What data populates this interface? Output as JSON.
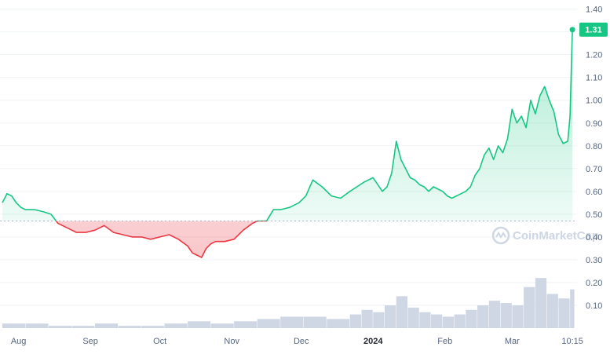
{
  "chart_data": {
    "type": "area",
    "baseline": 0.47,
    "y_ticks": [
      "1.40",
      "1.30",
      "1.20",
      "1.10",
      "1.00",
      "0.90",
      "0.80",
      "0.70",
      "0.60",
      "0.50",
      "0.40",
      "0.30",
      "0.20",
      "0.10"
    ],
    "ylim": [
      0.0,
      1.44
    ],
    "x_ticks": [
      {
        "label": "Aug",
        "day": 7
      },
      {
        "label": "Sep",
        "day": 38
      },
      {
        "label": "Oct",
        "day": 68
      },
      {
        "label": "Nov",
        "day": 99
      },
      {
        "label": "Dec",
        "day": 129
      },
      {
        "label": "2024",
        "day": 160,
        "bold": true
      },
      {
        "label": "Feb",
        "day": 191
      },
      {
        "label": "Mar",
        "day": 220
      },
      {
        "label": "10:15",
        "day": 246
      }
    ],
    "current_price": {
      "value": 1.31,
      "label": "1.31"
    },
    "series": [
      {
        "x": [
          0,
          2,
          4,
          6,
          8,
          10,
          14,
          18,
          21,
          24,
          28,
          32,
          36,
          40,
          44,
          48,
          52,
          56,
          60,
          64,
          68,
          72,
          76,
          80,
          82,
          84,
          86,
          88,
          90,
          92,
          96,
          100,
          104,
          108,
          110,
          114,
          117,
          120,
          124,
          128,
          131,
          134,
          138,
          142,
          146,
          150,
          153,
          156,
          160,
          162,
          164,
          166,
          168,
          170,
          172,
          174,
          176,
          178,
          180,
          182,
          184,
          186,
          188,
          190,
          192,
          194,
          196,
          198,
          200,
          202,
          204,
          206,
          208,
          210,
          212,
          214,
          216,
          218,
          220,
          222,
          224,
          226,
          228,
          230,
          232,
          234,
          236,
          238,
          240,
          242,
          244,
          245,
          246
        ],
        "y": [
          0.55,
          0.59,
          0.58,
          0.55,
          0.53,
          0.52,
          0.52,
          0.51,
          0.5,
          0.46,
          0.44,
          0.42,
          0.42,
          0.43,
          0.45,
          0.42,
          0.41,
          0.4,
          0.4,
          0.39,
          0.4,
          0.41,
          0.39,
          0.36,
          0.33,
          0.32,
          0.31,
          0.35,
          0.37,
          0.38,
          0.38,
          0.39,
          0.43,
          0.46,
          0.47,
          0.47,
          0.52,
          0.52,
          0.53,
          0.55,
          0.58,
          0.65,
          0.62,
          0.58,
          0.57,
          0.6,
          0.62,
          0.64,
          0.66,
          0.63,
          0.6,
          0.62,
          0.68,
          0.82,
          0.74,
          0.7,
          0.66,
          0.65,
          0.63,
          0.62,
          0.6,
          0.62,
          0.61,
          0.6,
          0.58,
          0.57,
          0.58,
          0.59,
          0.6,
          0.62,
          0.67,
          0.7,
          0.76,
          0.79,
          0.74,
          0.8,
          0.77,
          0.83,
          0.96,
          0.9,
          0.93,
          0.88,
          1.0,
          0.94,
          1.02,
          1.06,
          1.0,
          0.95,
          0.85,
          0.81,
          0.82,
          0.93,
          1.31
        ],
        "color_up": "#16c784",
        "color_down": "#ea3943"
      }
    ],
    "volume": {
      "x": [
        0,
        10,
        20,
        30,
        40,
        50,
        60,
        70,
        80,
        90,
        100,
        110,
        120,
        130,
        140,
        150,
        155,
        160,
        165,
        170,
        175,
        180,
        185,
        190,
        195,
        200,
        205,
        210,
        215,
        220,
        225,
        230,
        235,
        240,
        245
      ],
      "y": [
        0.02,
        0.02,
        0.01,
        0.01,
        0.02,
        0.01,
        0.01,
        0.02,
        0.03,
        0.02,
        0.03,
        0.04,
        0.05,
        0.05,
        0.04,
        0.06,
        0.08,
        0.07,
        0.1,
        0.14,
        0.09,
        0.07,
        0.06,
        0.05,
        0.06,
        0.08,
        0.1,
        0.12,
        0.11,
        0.1,
        0.18,
        0.22,
        0.15,
        0.13,
        0.17
      ],
      "color": "#cfd6e4"
    },
    "watermark": "CoinMarketCap"
  }
}
